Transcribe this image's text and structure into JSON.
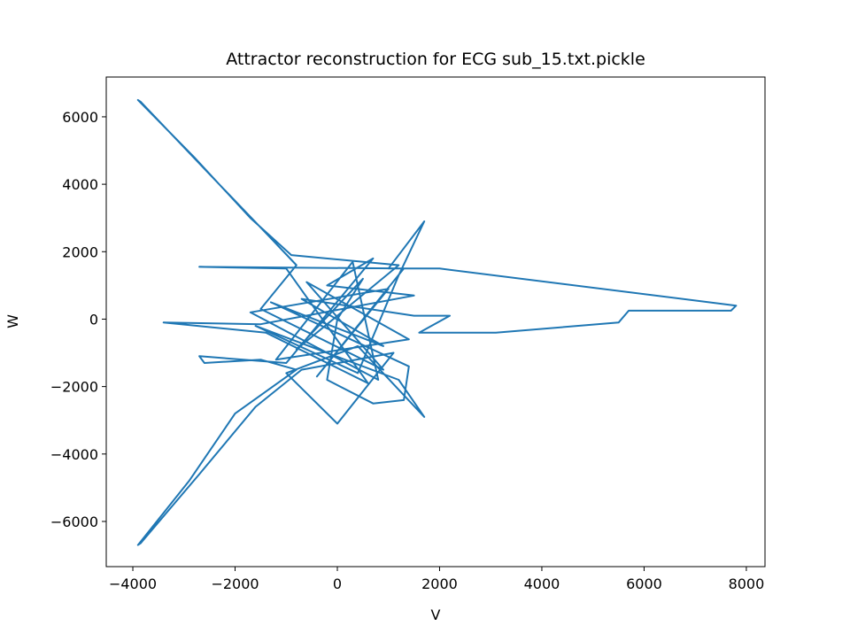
{
  "chart_data": {
    "type": "line",
    "title": "Attractor reconstruction for ECG sub_15.txt.pickle",
    "x_label": "V",
    "y_label": "W",
    "x": [
      0,
      500,
      -800,
      1200,
      -900,
      -1700,
      -2800,
      -3900,
      -3850,
      -2500,
      -1300,
      -800,
      -1500,
      900,
      -600,
      1400,
      -1200,
      300,
      800,
      -1700,
      1000,
      -400,
      1300,
      -2700,
      -1000,
      600,
      -1400,
      -3400,
      -1500,
      1500,
      -200,
      700,
      -1000,
      -2700,
      -2600,
      -1500,
      -800,
      -2000,
      -2900,
      -3900,
      -3850,
      -2700,
      -1600,
      -700,
      1100,
      0,
      -1000,
      400,
      1700,
      1200,
      -1600,
      400,
      1200,
      1700,
      1000,
      2000,
      7800,
      7700,
      5700,
      5500,
      3100,
      1600,
      2200,
      1500,
      -700,
      900,
      -1300,
      1400,
      1300,
      700,
      -200,
      0
    ],
    "series": [
      {
        "color": "#1f77b4",
        "values": [
          0,
          1200,
          -900,
          1600,
          1900,
          3000,
          4800,
          6500,
          6450,
          4300,
          2400,
          1600,
          300,
          -1500,
          1100,
          -600,
          -1200,
          1700,
          -1800,
          200,
          900,
          -1700,
          1500,
          1550,
          1500,
          -1900,
          -400,
          -100,
          -150,
          700,
          1000,
          1800,
          -1300,
          -1100,
          -1300,
          -1200,
          -1500,
          -2800,
          -4800,
          -6700,
          -6650,
          -4600,
          -2600,
          -1500,
          -1000,
          -3100,
          -1600,
          -800,
          -2900,
          -1800,
          -200,
          -1600,
          1300,
          2900,
          1500,
          1500,
          400,
          250,
          250,
          -100,
          -400,
          -400,
          100,
          100,
          600,
          -800,
          500,
          -1400,
          -2400,
          -2500,
          -1800,
          0
        ]
      }
    ],
    "xlim": [
      -4520,
      8365
    ],
    "ylim": [
      -7340,
      7180
    ],
    "xticks": [
      {
        "value": -4000,
        "label": "−4000"
      },
      {
        "value": -2000,
        "label": "−2000"
      },
      0,
      2000,
      4000,
      6000,
      8000
    ],
    "yticks": [
      {
        "value": -6000,
        "label": "−6000"
      },
      {
        "value": -4000,
        "label": "−4000"
      },
      {
        "value": -2000,
        "label": "−2000"
      },
      0,
      2000,
      4000,
      6000
    ]
  }
}
